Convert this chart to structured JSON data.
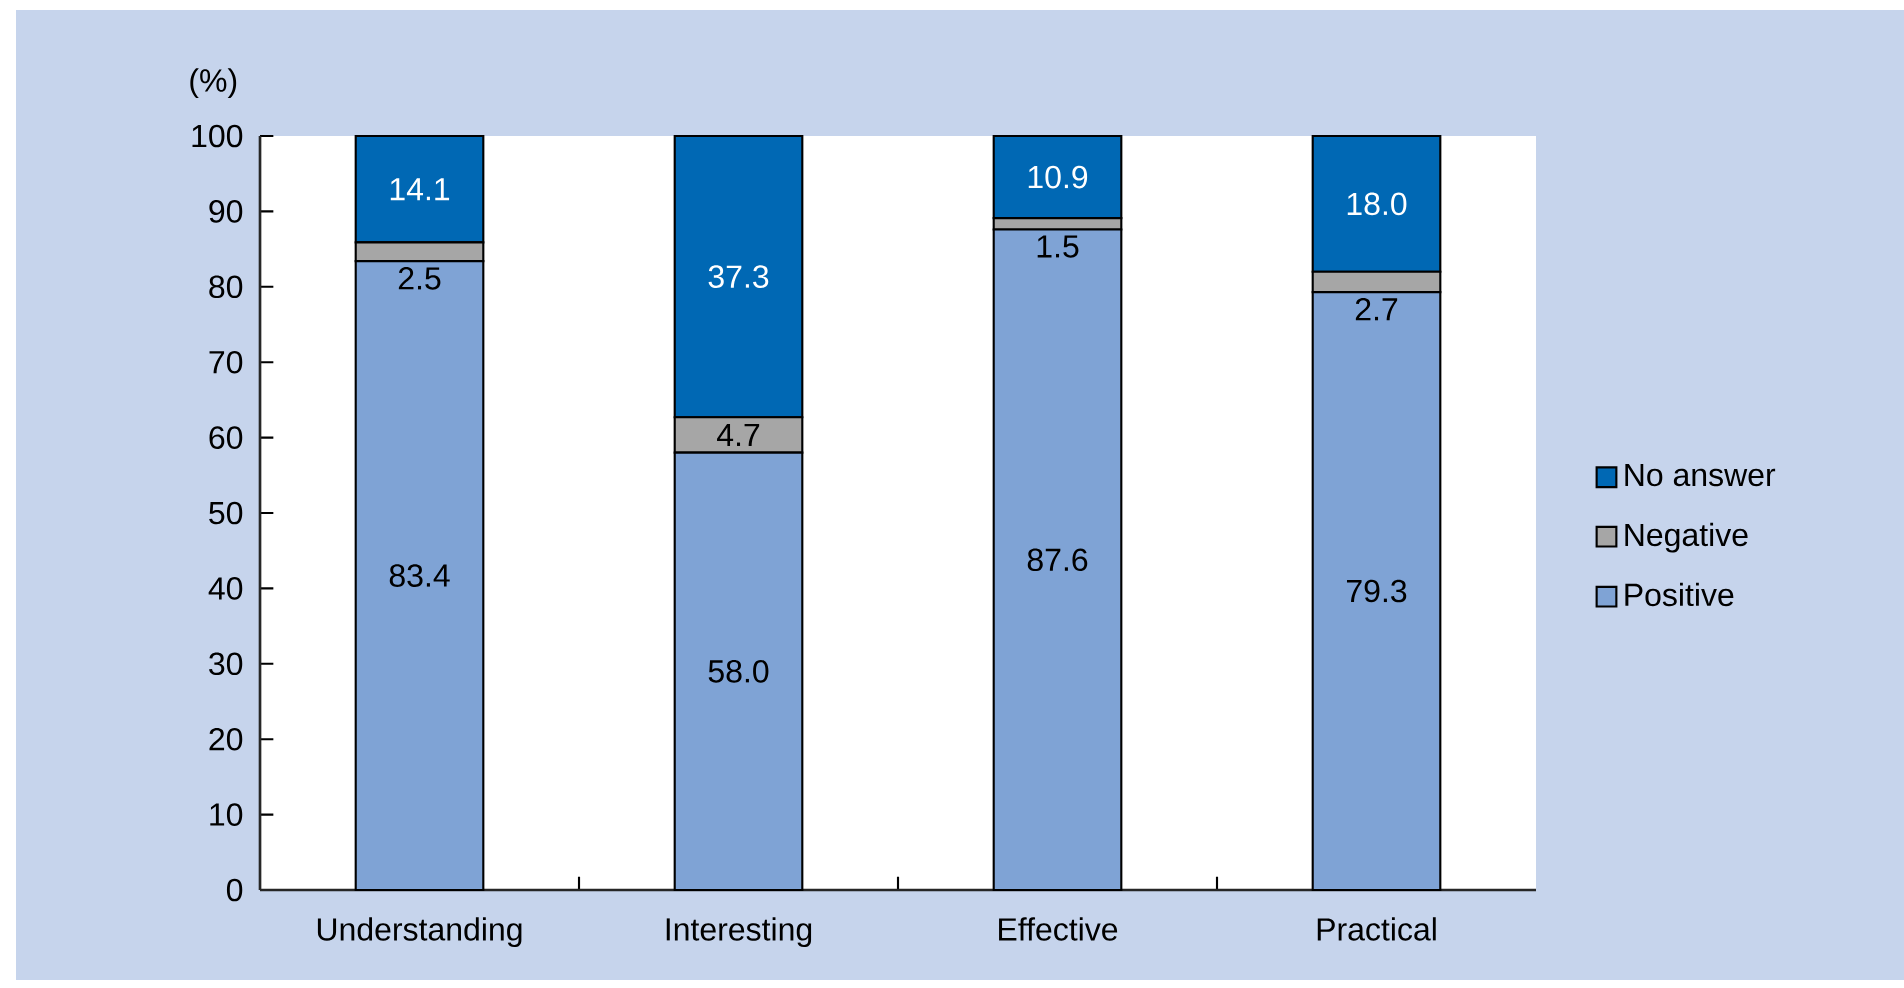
{
  "chart_data": {
    "type": "bar",
    "stacked": true,
    "ylabel": "(%)",
    "categories": [
      "Understanding",
      "Interesting",
      "Effective",
      "Practical"
    ],
    "series": [
      {
        "name": "Positive",
        "color": "#7fa3d5",
        "values": [
          83.4,
          58.0,
          87.6,
          79.3
        ],
        "value_labels": [
          "83.4",
          "58.0",
          "87.6",
          "79.3"
        ]
      },
      {
        "name": "Negative",
        "color": "#a6a6a6",
        "values": [
          2.5,
          4.7,
          1.5,
          2.7
        ],
        "value_labels": [
          "2.5",
          "4.7",
          "1.5",
          "2.7"
        ]
      },
      {
        "name": "No answer",
        "color": "#0068b4",
        "values": [
          14.1,
          37.3,
          10.9,
          18.0
        ],
        "value_labels": [
          "14.1",
          "37.3",
          "10.9",
          "18.0"
        ]
      }
    ],
    "ylim": [
      0,
      100
    ],
    "yticks": [
      0,
      10,
      20,
      30,
      40,
      50,
      60,
      70,
      80,
      90,
      100
    ],
    "legend": "right",
    "grid": false
  }
}
